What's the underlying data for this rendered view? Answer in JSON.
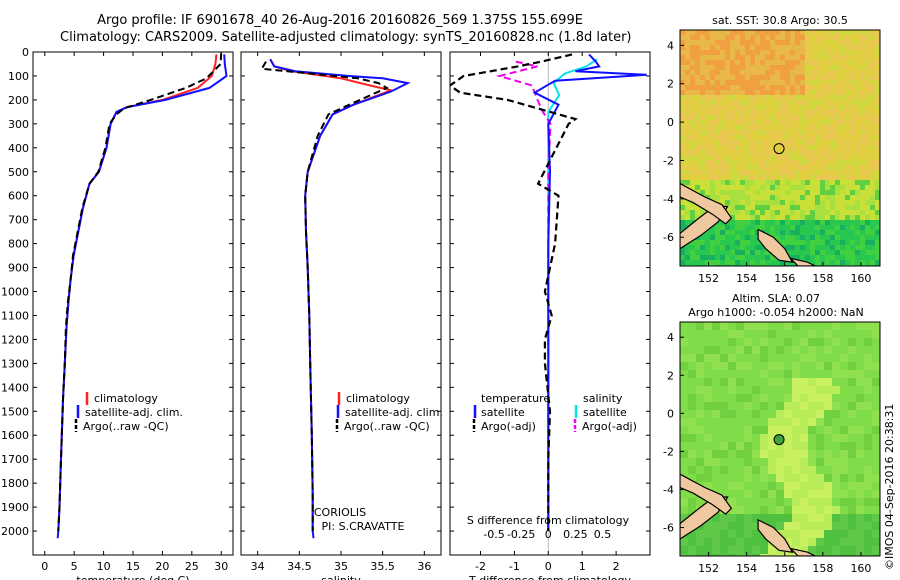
{
  "header": {
    "title_line1": "Argo profile: IF 6901678_40 26-Aug-2016 20160826_569 1.375S 155.699E",
    "title_line2": "Climatology: CARS2009. Satellite-adjusted climatology: synTS_20160828.nc (1.8d later)"
  },
  "colors": {
    "climatology": "#ff2020",
    "satellite": "#1010ff",
    "argo": "#000000",
    "sat_salinity": "#00e5ee",
    "argo_adj_salinity": "#ee00ee"
  },
  "chart_data": [
    {
      "id": "temperature",
      "type": "line",
      "xlabel": "temperature (deg C)",
      "ylabel": "",
      "xlim": [
        -2,
        32
      ],
      "ylim": [
        2100,
        0
      ],
      "xticks": [
        0,
        5,
        10,
        15,
        20,
        25,
        30
      ],
      "yticks": [
        0,
        100,
        200,
        300,
        400,
        500,
        600,
        700,
        800,
        900,
        1000,
        1100,
        1200,
        1300,
        1400,
        1500,
        1600,
        1700,
        1800,
        1900,
        2000
      ],
      "legend": [
        "climatology",
        "satellite-adj. clim.",
        "Argo(..raw -QC)"
      ],
      "series": [
        {
          "name": "climatology",
          "x": [
            29.2,
            29.0,
            28.4,
            26,
            20,
            14,
            12.2,
            11.2,
            10.5,
            9.2,
            7.6,
            6.5,
            5.7,
            4.9,
            4.4,
            4.0,
            3.7,
            3.4,
            3.1,
            2.9,
            2.7,
            2.5,
            2.3
          ],
          "y": [
            10,
            50,
            100,
            150,
            200,
            230,
            250,
            300,
            400,
            500,
            550,
            650,
            750,
            850,
            950,
            1050,
            1150,
            1300,
            1450,
            1600,
            1750,
            1900,
            2000
          ]
        },
        {
          "name": "satellite",
          "x": [
            30.5,
            30.6,
            30.9,
            28,
            20.5,
            14,
            12.2,
            11.2,
            10.5,
            9.2,
            7.6,
            6.5,
            5.7,
            4.9,
            4.4,
            4.0,
            3.7,
            3.4,
            3.1,
            2.9,
            2.7,
            2.5,
            2.3,
            2.2
          ],
          "y": [
            10,
            50,
            100,
            150,
            200,
            230,
            250,
            300,
            400,
            500,
            550,
            650,
            750,
            850,
            950,
            1050,
            1150,
            1300,
            1450,
            1600,
            1750,
            1900,
            2000,
            2030
          ]
        },
        {
          "name": "Argo",
          "x": [
            30.0,
            29.9,
            27.5,
            24,
            18,
            13.5,
            12.2,
            11,
            10.3,
            9.1,
            7.6,
            6.4,
            5.6,
            4.8,
            4.4,
            3.9,
            3.6,
            3.4,
            3.1,
            2.9,
            2.7,
            2.5,
            2.3
          ],
          "y": [
            5,
            50,
            110,
            150,
            200,
            235,
            260,
            300,
            400,
            500,
            550,
            650,
            750,
            850,
            950,
            1050,
            1150,
            1300,
            1450,
            1600,
            1750,
            1900,
            2000
          ]
        }
      ]
    },
    {
      "id": "salinity",
      "type": "line",
      "xlabel": "salinity",
      "xlim": [
        33.8,
        36.2
      ],
      "ylim": [
        2100,
        0
      ],
      "xticks": [
        34,
        34.5,
        35,
        35.5,
        36
      ],
      "legend": [
        "climatology",
        "satellite-adj. clim.",
        "Argo(..raw -QC)"
      ],
      "annotations": [
        "CORIOLIS",
        "PI: S.CRAVATTE"
      ],
      "series": [
        {
          "name": "climatology",
          "x": [
            34.15,
            34.2,
            34.4,
            35.0,
            35.35,
            35.6,
            35.15,
            34.9,
            34.75,
            34.6,
            34.57,
            34.58,
            34.6,
            34.62,
            34.63,
            34.65,
            34.66,
            34.66
          ],
          "y": [
            30,
            60,
            80,
            110,
            140,
            160,
            220,
            260,
            350,
            500,
            600,
            750,
            900,
            1100,
            1300,
            1600,
            1850,
            2000
          ]
        },
        {
          "name": "satellite",
          "x": [
            34.15,
            34.2,
            34.45,
            35.1,
            35.5,
            35.8,
            35.6,
            35.15,
            34.9,
            34.75,
            34.6,
            34.57,
            34.58,
            34.6,
            34.62,
            34.63,
            34.65,
            34.66,
            34.66,
            34.67
          ],
          "y": [
            30,
            60,
            80,
            100,
            110,
            130,
            165,
            220,
            260,
            350,
            500,
            600,
            750,
            900,
            1100,
            1300,
            1600,
            1850,
            2000,
            2030
          ]
        },
        {
          "name": "Argo",
          "x": [
            34.1,
            34.05,
            34.5,
            35.2,
            35.45,
            35.55,
            35.1,
            34.85,
            34.72,
            34.6,
            34.57,
            34.58,
            34.6,
            34.62,
            34.63,
            34.65,
            34.66,
            34.66
          ],
          "y": [
            40,
            70,
            85,
            110,
            130,
            150,
            220,
            260,
            350,
            500,
            600,
            750,
            900,
            1100,
            1300,
            1600,
            1850,
            2000
          ]
        }
      ]
    },
    {
      "id": "difference",
      "type": "line",
      "xlabel": "T difference from climatology",
      "top_xlabel": "S difference from climatology",
      "xlim": [
        -2.9,
        3.0
      ],
      "ylim": [
        2100,
        0
      ],
      "xticks": [
        -2,
        -1,
        0,
        1,
        2
      ],
      "top_xticks": [
        -0.5,
        -0.25,
        0,
        0.25,
        0.5
      ],
      "legend_temperature": [
        "temperature",
        "satellite",
        "Argo(-adj)"
      ],
      "legend_salinity": [
        "salinity",
        "satellite",
        "Argo(-adj)"
      ],
      "series": [
        {
          "name": "T satellite",
          "x": [
            1.2,
            1.4,
            1.5,
            0.8,
            2.9,
            0.2,
            -0.4,
            0.3,
            0,
            0.05,
            0,
            0,
            0,
            0,
            0,
            0
          ],
          "y": [
            10,
            40,
            60,
            80,
            95,
            120,
            170,
            220,
            300,
            500,
            800,
            1000,
            1300,
            1600,
            1900,
            2000
          ]
        },
        {
          "name": "T Argo(-adj)",
          "x": [
            0.7,
            -0.2,
            -0.9,
            -2.5,
            -2.9,
            -2.6,
            -1.2,
            0.8,
            0.6,
            -0.3,
            0.3,
            0.2,
            -0.1,
            0.1,
            -0.1,
            -0.1,
            0.05,
            0,
            0,
            0
          ],
          "y": [
            10,
            40,
            60,
            100,
            140,
            170,
            200,
            280,
            300,
            550,
            600,
            800,
            1000,
            1100,
            1200,
            1300,
            1500,
            1700,
            1900,
            2000
          ]
        },
        {
          "name": "S satellite",
          "x": [
            0.45,
            0.35,
            0.15,
            0.05,
            0.1,
            0,
            0,
            0,
            0,
            0,
            0
          ],
          "y": [
            30,
            60,
            90,
            130,
            180,
            250,
            400,
            700,
            1000,
            1500,
            2000
          ]
        },
        {
          "name": "S Argo(-adj)",
          "x": [
            -0.3,
            -0.1,
            -0.45,
            -0.15,
            -0.1,
            -0.05,
            0.02,
            0,
            0,
            0,
            0
          ],
          "y": [
            40,
            60,
            100,
            140,
            200,
            250,
            300,
            500,
            900,
            1500,
            2000
          ]
        }
      ]
    },
    {
      "id": "sst_map",
      "type": "heatmap",
      "title": "sat. SST: 30.8  Argo: 30.5",
      "xlim": [
        150.5,
        161
      ],
      "ylim": [
        -7.5,
        4.8
      ],
      "xticks": [
        152,
        154,
        156,
        158,
        160
      ],
      "yticks": [
        4,
        2,
        0,
        -2,
        -4,
        -6
      ],
      "marker": {
        "lon": 155.7,
        "lat": -1.38
      }
    },
    {
      "id": "sla_map",
      "type": "heatmap",
      "title_line1": "Altim. SLA: 0.07",
      "title_line2": "Argo h1000: -0.054 h2000: NaN",
      "xlim": [
        150.5,
        161
      ],
      "ylim": [
        -7.5,
        4.8
      ],
      "xticks": [
        152,
        154,
        156,
        158,
        160
      ],
      "yticks": [
        4,
        2,
        0,
        -2,
        -4,
        -6
      ],
      "marker": {
        "lon": 155.7,
        "lat": -1.38
      }
    }
  ],
  "footer": {
    "stamp": "©IMOS 04-Sep-2016 20:38:31"
  }
}
